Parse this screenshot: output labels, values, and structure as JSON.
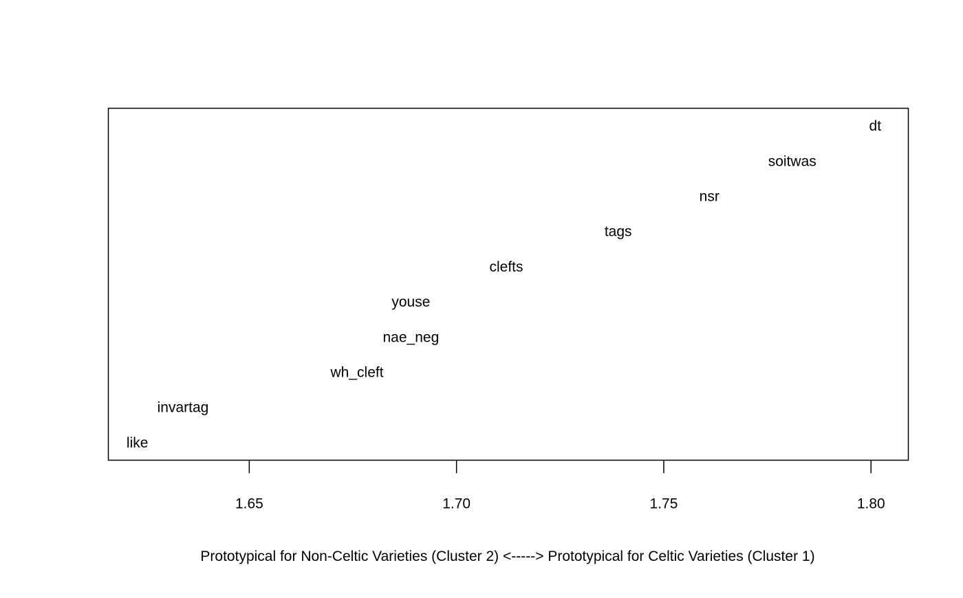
{
  "chart_data": {
    "type": "scatter",
    "title": "",
    "xlabel": "Prototypical for Non-Celtic Varieties (Cluster 2) <-----> Prototypical for Celtic Varieties (Cluster 1)",
    "ylabel": "",
    "xlim": [
      1.616,
      1.809
    ],
    "ylim": [
      0.5,
      10.5
    ],
    "x_ticks": [
      1.65,
      1.7,
      1.75,
      1.8
    ],
    "x_tick_labels": [
      "1.65",
      "1.70",
      "1.75",
      "1.80"
    ],
    "y_axis_shown": false,
    "grid": false,
    "legend": "none",
    "points": [
      {
        "label": "like",
        "x": 1.623,
        "y": 1
      },
      {
        "label": "invartag",
        "x": 1.634,
        "y": 2
      },
      {
        "label": "wh_cleft",
        "x": 1.676,
        "y": 3
      },
      {
        "label": "nae_neg",
        "x": 1.689,
        "y": 4
      },
      {
        "label": "youse",
        "x": 1.689,
        "y": 5
      },
      {
        "label": "clefts",
        "x": 1.712,
        "y": 6
      },
      {
        "label": "tags",
        "x": 1.739,
        "y": 7
      },
      {
        "label": "nsr",
        "x": 1.761,
        "y": 8
      },
      {
        "label": "soitwas",
        "x": 1.781,
        "y": 9
      },
      {
        "label": "dt",
        "x": 1.801,
        "y": 10
      }
    ]
  }
}
